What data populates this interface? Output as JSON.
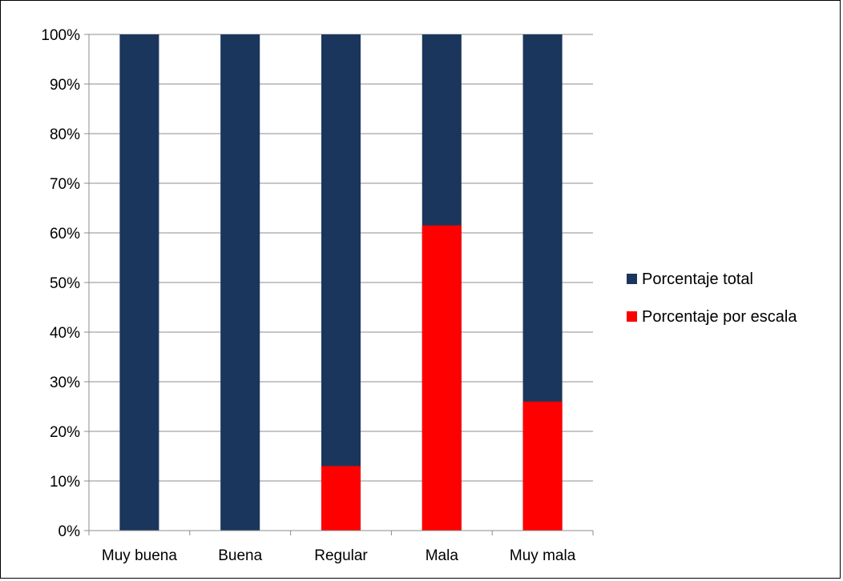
{
  "chart_data": {
    "type": "bar",
    "stacked": false,
    "overlapping": true,
    "categories": [
      "Muy buena",
      "Buena",
      "Regular",
      "Mala",
      "Muy mala"
    ],
    "series": [
      {
        "name": "Porcentaje total",
        "color": "#1b365d",
        "values": [
          100,
          100,
          100,
          100,
          100
        ]
      },
      {
        "name": "Porcentaje por escala",
        "color": "#ff0000",
        "values": [
          0,
          0,
          13,
          61.5,
          26
        ]
      }
    ],
    "ylim": [
      0,
      100
    ],
    "y_ticks": [
      0,
      10,
      20,
      30,
      40,
      50,
      60,
      70,
      80,
      90,
      100
    ],
    "y_tick_format": "percent",
    "grid": true,
    "legend_placement": "right",
    "title": "",
    "xlabel": "",
    "ylabel": ""
  }
}
